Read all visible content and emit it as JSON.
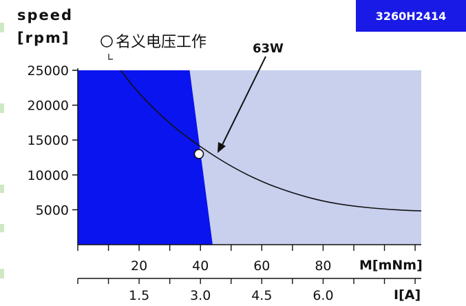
{
  "chart_data": {
    "type": "line",
    "model_badge": "3260H2414",
    "ylabel_line1": "speed",
    "ylabel_line2": "[rpm]",
    "legend_label": "名义电压工作",
    "annotation": "63W",
    "y_ticks": [
      25000,
      20000,
      15000,
      10000,
      5000
    ],
    "ylim": [
      0,
      25000
    ],
    "x_torque": {
      "label": "M[mNm]",
      "ticks": [
        20,
        40,
        60,
        80
      ],
      "range": [
        0,
        112
      ]
    },
    "x_current": {
      "label": "I[A]",
      "ticks": [
        "1.5",
        "3.0",
        "4.5",
        "6.0"
      ],
      "tick_values": [
        1.5,
        3.0,
        4.5,
        6.0
      ],
      "range": [
        0,
        8.4
      ]
    },
    "regions": [
      {
        "name": "continuous",
        "color": "#0a14ee",
        "polygon": [
          [
            0,
            25000
          ],
          [
            36.5,
            25000
          ],
          [
            44,
            0
          ],
          [
            0,
            0
          ]
        ]
      },
      {
        "name": "intermittent",
        "color": "#c8d0ee",
        "polygon": [
          [
            36.5,
            25000
          ],
          [
            112,
            25000
          ],
          [
            112,
            0
          ],
          [
            44,
            0
          ]
        ]
      }
    ],
    "series": [
      {
        "type": "line",
        "color": "#111111",
        "points": [
          [
            14,
            25000
          ],
          [
            20,
            21600
          ],
          [
            30,
            17300
          ],
          [
            40,
            14000
          ],
          [
            50,
            11200
          ],
          [
            60,
            9000
          ],
          [
            70,
            7400
          ],
          [
            80,
            6200
          ],
          [
            90,
            5500
          ],
          [
            100,
            5100
          ],
          [
            108,
            4900
          ],
          [
            112,
            4850
          ]
        ]
      }
    ],
    "operating_point": {
      "x": 39.5,
      "y": 13000
    },
    "colors": {
      "badge": "#1a1ae6",
      "axis": "#111111"
    }
  }
}
